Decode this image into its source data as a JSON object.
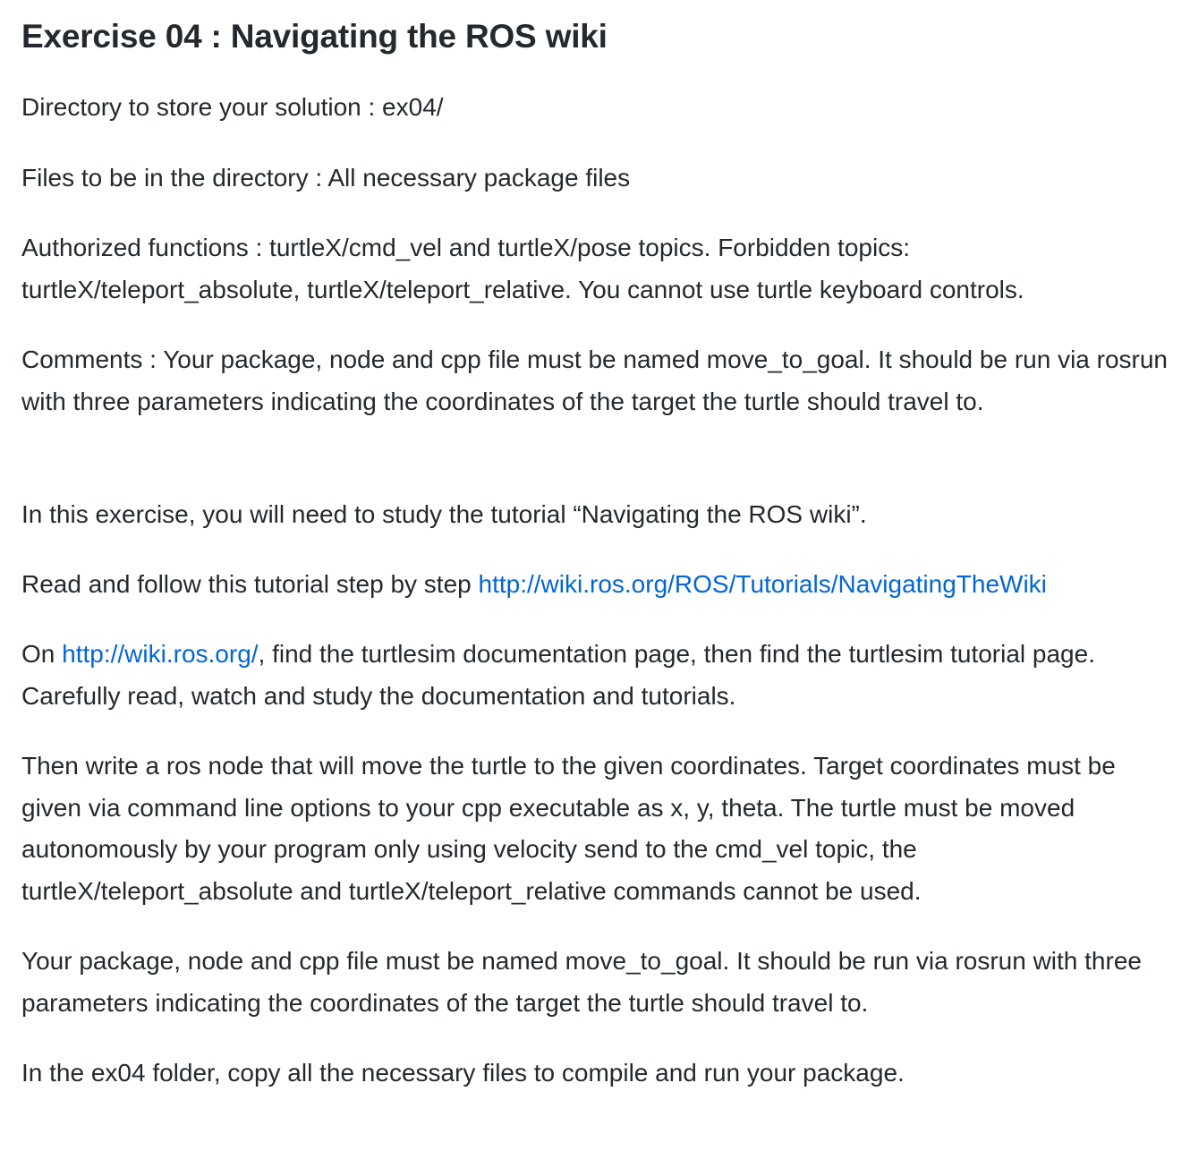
{
  "title": "Exercise 04 : Navigating the ROS wiki",
  "directory": "Directory to store your solution : ex04/",
  "files": "Files to be in the directory : All necessary package files",
  "authorized": "Authorized functions : turtleX/cmd_vel and turtleX/pose topics. Forbidden topics: turtleX/teleport_absolute, turtleX/teleport_relative. You cannot use turtle keyboard controls.",
  "comments": "Comments : Your package, node and cpp file must be named move_to_goal. It should be run via rosrun with three parameters indicating the coordinates of the target the turtle should travel to.",
  "intro": "In this exercise, you will need to study the tutorial “Navigating the ROS wiki”.",
  "read_follow": {
    "prefix": "Read and follow this tutorial step by step ",
    "link": "http://wiki.ros.org/ROS/Tutorials/NavigatingTheWiki"
  },
  "on_wiki": {
    "prefix": "On ",
    "link": "http://wiki.ros.org/",
    "suffix": ", find the turtlesim documentation page, then find the turtlesim tutorial page. Carefully read, watch and study the documentation and tutorials."
  },
  "then_write": "Then write a ros node that will move the turtle to the given coordinates. Target coordinates must be given via command line options to your cpp executable as x, y, theta. The turtle must be moved autonomously by your program only using velocity send to the cmd_vel topic, the turtleX/teleport_absolute and turtleX/teleport_relative commands cannot be used.",
  "package_note": "Your package, node and cpp file must be named move_to_goal. It should be run via rosrun with three parameters indicating the coordinates of the target the turtle should travel to.",
  "copy_note": "In the ex04 folder, copy all the necessary files to compile and run your package.",
  "colors": {
    "text": "#24292e",
    "link": "#0366d6"
  }
}
